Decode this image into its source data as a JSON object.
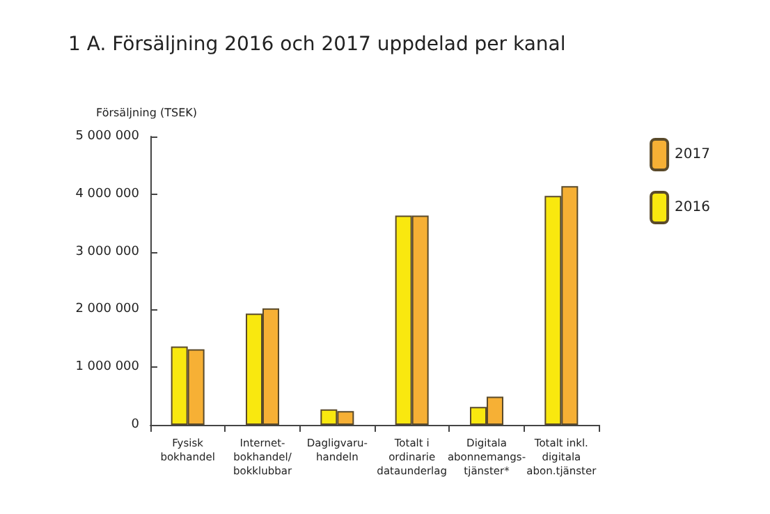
{
  "chart_data": {
    "type": "bar",
    "title": "1 A. Försäljning 2016 och 2017 uppdelad per kanal",
    "ylabel": "Försäljning (TSEK)",
    "categories": [
      "Fysisk\nbokhandel",
      "Internet-\nbokhandel/\nbokklubbar",
      "Dagligvaru-\nhandeln",
      "Totalt i\nordinarie\ndataunderlag",
      "Digitala\nabonnemangs-\ntjänster*",
      "Totalt inkl.\ndigitala\nabon.tjänster"
    ],
    "series": [
      {
        "name": "2016",
        "color": "#f9e80f",
        "values": [
          1360000,
          1930000,
          270000,
          3630000,
          310000,
          3970000
        ]
      },
      {
        "name": "2017",
        "color": "#f6b035",
        "values": [
          1310000,
          2020000,
          240000,
          3630000,
          490000,
          4140000
        ]
      }
    ],
    "ylim": [
      0,
      5000000
    ],
    "yticks": [
      {
        "value": 0,
        "label": "0"
      },
      {
        "value": 1000000,
        "label": "1 000 000"
      },
      {
        "value": 2000000,
        "label": "2 000 000"
      },
      {
        "value": 3000000,
        "label": "3 000 000"
      },
      {
        "value": 4000000,
        "label": "4 000 000"
      },
      {
        "value": 5000000,
        "label": "5 000 000"
      }
    ],
    "grid": false,
    "legend": "top right"
  }
}
